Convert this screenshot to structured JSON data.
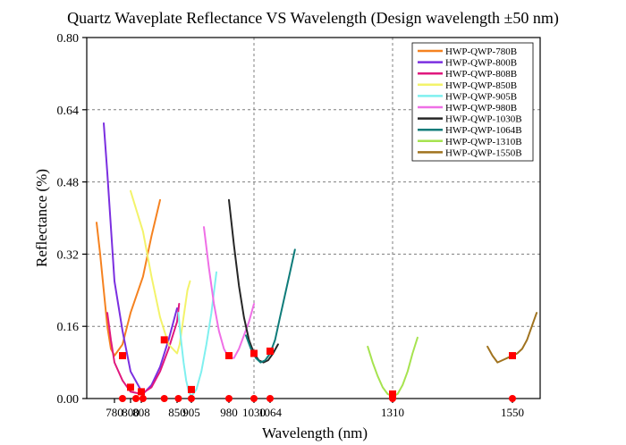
{
  "chart_data": {
    "type": "line",
    "title": "Quartz Waveplate Reflectance VS Wavelength (Design wavelength ±50 nm)",
    "xlabel": "Wavelength (nm)",
    "ylabel": "Reflectance (%)",
    "xlim": [
      740,
      1600
    ],
    "ylim": [
      0,
      0.8
    ],
    "grid": true,
    "legend_position": "top-right",
    "x_ticks": [
      780,
      800,
      808,
      850,
      905,
      980,
      1030,
      1064,
      1310,
      1550
    ],
    "x_tick_labels": [
      "780",
      "800",
      "808",
      "850",
      "905",
      "980",
      "1030",
      "1064",
      "1310",
      "1550"
    ],
    "y_ticks": [
      0,
      0.16,
      0.32,
      0.48,
      0.64,
      0.8
    ],
    "y_tick_labels": [
      "0.00",
      "0.16",
      "0.32",
      "0.48",
      "0.64",
      "0.80"
    ],
    "x_gridlines": [
      1030,
      1310
    ],
    "series": [
      {
        "name": "HWP-QWP-780B",
        "color": "#f58220",
        "x": [
          730,
          740,
          750,
          760,
          770,
          780,
          790,
          800,
          810,
          820,
          830
        ],
        "y": [
          0.39,
          0.32,
          0.24,
          0.16,
          0.11,
          0.095,
          0.12,
          0.19,
          0.27,
          0.36,
          0.44
        ]
      },
      {
        "name": "HWP-QWP-800B",
        "color": "#7b2fe0",
        "x": [
          750,
          760,
          770,
          780,
          790,
          800,
          810,
          820,
          830,
          840,
          850
        ],
        "y": [
          0.61,
          0.5,
          0.38,
          0.26,
          0.15,
          0.06,
          0.01,
          0.03,
          0.07,
          0.13,
          0.2
        ]
      },
      {
        "name": "HWP-QWP-808B",
        "color": "#e0187e",
        "x": [
          760,
          770,
          780,
          790,
          800,
          808,
          820,
          830,
          840,
          850,
          858
        ],
        "y": [
          0.19,
          0.13,
          0.08,
          0.04,
          0.015,
          0.01,
          0.025,
          0.06,
          0.11,
          0.17,
          0.21
        ]
      },
      {
        "name": "HWP-QWP-850B",
        "color": "#f3f36a",
        "x": [
          800,
          810,
          820,
          830,
          840,
          850,
          860,
          870,
          880,
          890,
          900
        ],
        "y": [
          0.46,
          0.37,
          0.27,
          0.18,
          0.12,
          0.1,
          0.12,
          0.16,
          0.2,
          0.24,
          0.26
        ]
      },
      {
        "name": "HWP-QWP-905B",
        "color": "#7ff0ef",
        "x": [
          855,
          865,
          875,
          885,
          895,
          905,
          915,
          925,
          935,
          945,
          955
        ],
        "y": [
          0.19,
          0.13,
          0.08,
          0.04,
          0.015,
          0.005,
          0.02,
          0.06,
          0.12,
          0.19,
          0.28
        ]
      },
      {
        "name": "HWP-QWP-980B",
        "color": "#ef6fe6",
        "x": [
          930,
          940,
          950,
          960,
          970,
          980,
          990,
          1000,
          1010,
          1020,
          1030
        ],
        "y": [
          0.38,
          0.29,
          0.21,
          0.15,
          0.11,
          0.09,
          0.09,
          0.11,
          0.14,
          0.17,
          0.21
        ]
      },
      {
        "name": "HWP-QWP-1030B",
        "color": "#262626",
        "x": [
          980,
          990,
          1000,
          1010,
          1020,
          1030,
          1040,
          1050,
          1060,
          1070,
          1080
        ],
        "y": [
          0.44,
          0.34,
          0.25,
          0.18,
          0.13,
          0.1,
          0.085,
          0.08,
          0.085,
          0.1,
          0.12
        ]
      },
      {
        "name": "HWP-QWP-1064B",
        "color": "#0f7c7a",
        "x": [
          1014,
          1024,
          1034,
          1044,
          1054,
          1064,
          1074,
          1084,
          1094,
          1104,
          1114
        ],
        "y": [
          0.14,
          0.11,
          0.09,
          0.08,
          0.085,
          0.1,
          0.13,
          0.18,
          0.23,
          0.28,
          0.33
        ]
      },
      {
        "name": "HWP-QWP-1310B",
        "color": "#a6e34f",
        "x": [
          1260,
          1270,
          1280,
          1290,
          1300,
          1310,
          1320,
          1330,
          1340,
          1350,
          1360
        ],
        "y": [
          0.115,
          0.08,
          0.05,
          0.025,
          0.01,
          0.005,
          0.01,
          0.03,
          0.06,
          0.1,
          0.135
        ]
      },
      {
        "name": "HWP-QWP-1550B",
        "color": "#a0731f",
        "x": [
          1500,
          1510,
          1520,
          1530,
          1540,
          1550,
          1560,
          1570,
          1580,
          1590,
          1600
        ],
        "y": [
          0.115,
          0.095,
          0.08,
          0.085,
          0.09,
          0.095,
          0.1,
          0.11,
          0.13,
          0.16,
          0.19
        ]
      }
    ],
    "markers": {
      "red_squares": [
        {
          "x": 790,
          "y": 0.095
        },
        {
          "x": 800,
          "y": 0.025
        },
        {
          "x": 808,
          "y": 0.015
        },
        {
          "x": 835,
          "y": 0.13
        },
        {
          "x": 905,
          "y": 0.02
        },
        {
          "x": 980,
          "y": 0.095
        },
        {
          "x": 1030,
          "y": 0.1
        },
        {
          "x": 1064,
          "y": 0.105
        },
        {
          "x": 1310,
          "y": 0.01
        },
        {
          "x": 1550,
          "y": 0.095
        }
      ],
      "red_dots_on_axis": [
        790,
        804,
        810,
        835,
        855,
        905,
        980,
        1030,
        1064,
        1310,
        1550
      ]
    }
  }
}
